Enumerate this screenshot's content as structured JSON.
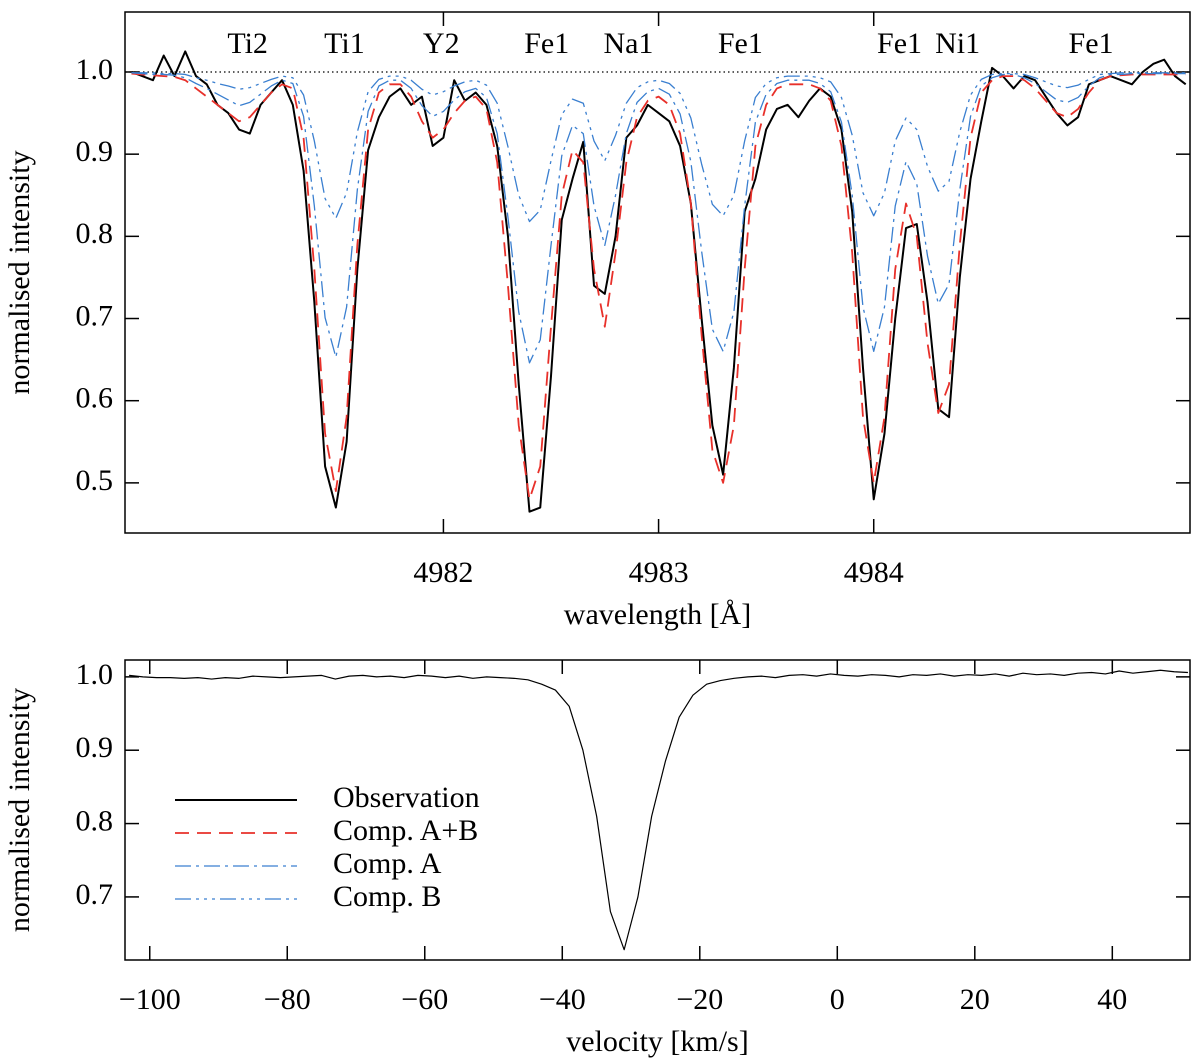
{
  "chart_data": [
    {
      "type": "line",
      "ylabel": "normalised intensity",
      "xlabel": "wavelength [Å]",
      "xlim": [
        4980.52,
        4985.47
      ],
      "ylim": [
        0.439,
        1.073
      ],
      "xticks": [
        4982,
        4983,
        4984
      ],
      "yticks": [
        0.5,
        0.6,
        0.7,
        0.8,
        0.9,
        {
          "value": 1,
          "label": "1.0"
        }
      ],
      "hline": 1,
      "annotations": [
        {
          "text": "Ti2",
          "x": 4981.09
        },
        {
          "text": "Ti1",
          "x": 4981.54
        },
        {
          "text": "Y2",
          "x": 4981.99
        },
        {
          "text": "Fe1",
          "x": 4982.48
        },
        {
          "text": "Na1",
          "x": 4982.86
        },
        {
          "text": "Fe1",
          "x": 4983.38
        },
        {
          "text": "Fe1",
          "x": 4984.12
        },
        {
          "text": "Ni1",
          "x": 4984.39
        },
        {
          "text": "Fe1",
          "x": 4985.01
        }
      ],
      "x": [
        4980.55,
        4980.6,
        4980.65,
        4980.7,
        4980.75,
        4980.8,
        4980.85,
        4980.9,
        4980.95,
        4981,
        4981.05,
        4981.1,
        4981.15,
        4981.2,
        4981.25,
        4981.3,
        4981.35,
        4981.4,
        4981.45,
        4981.5,
        4981.55,
        4981.6,
        4981.65,
        4981.7,
        4981.75,
        4981.8,
        4981.85,
        4981.9,
        4981.95,
        4982,
        4982.05,
        4982.1,
        4982.15,
        4982.2,
        4982.25,
        4982.3,
        4982.35,
        4982.4,
        4982.45,
        4982.5,
        4982.55,
        4982.6,
        4982.65,
        4982.7,
        4982.75,
        4982.8,
        4982.85,
        4982.9,
        4982.95,
        4983,
        4983.05,
        4983.1,
        4983.15,
        4983.2,
        4983.25,
        4983.3,
        4983.35,
        4983.4,
        4983.45,
        4983.5,
        4983.55,
        4983.6,
        4983.65,
        4983.7,
        4983.75,
        4983.8,
        4983.85,
        4983.9,
        4983.95,
        4984,
        4984.05,
        4984.1,
        4984.15,
        4984.2,
        4984.25,
        4984.3,
        4984.35,
        4984.4,
        4984.45,
        4984.5,
        4984.55,
        4984.6,
        4984.65,
        4984.7,
        4984.75,
        4984.8,
        4984.85,
        4984.9,
        4984.95,
        4985,
        4985.05,
        4985.1,
        4985.15,
        4985.2,
        4985.25,
        4985.3,
        4985.35,
        4985.4,
        4985.45
      ],
      "series": [
        {
          "name": "Observation",
          "color": "#000000",
          "style": "solid",
          "values": [
            1.0,
            0.995,
            0.99,
            1.02,
            0.995,
            1.025,
            0.995,
            0.985,
            0.96,
            0.95,
            0.93,
            0.925,
            0.96,
            0.975,
            0.99,
            0.96,
            0.88,
            0.72,
            0.52,
            0.47,
            0.55,
            0.76,
            0.905,
            0.945,
            0.97,
            0.98,
            0.96,
            0.97,
            0.91,
            0.92,
            0.99,
            0.965,
            0.975,
            0.96,
            0.91,
            0.8,
            0.62,
            0.465,
            0.47,
            0.63,
            0.82,
            0.87,
            0.915,
            0.74,
            0.73,
            0.8,
            0.92,
            0.935,
            0.96,
            0.95,
            0.94,
            0.91,
            0.84,
            0.7,
            0.57,
            0.51,
            0.64,
            0.83,
            0.87,
            0.93,
            0.955,
            0.96,
            0.945,
            0.965,
            0.98,
            0.97,
            0.93,
            0.83,
            0.64,
            0.48,
            0.56,
            0.7,
            0.81,
            0.815,
            0.72,
            0.59,
            0.58,
            0.75,
            0.87,
            0.94,
            1.005,
            0.995,
            0.98,
            0.995,
            0.99,
            0.97,
            0.95,
            0.935,
            0.945,
            0.985,
            0.99,
            0.995,
            0.99,
            0.985,
            1.0,
            1.01,
            1.015,
            0.995,
            0.985
          ]
        },
        {
          "name": "Comp. A+B",
          "color": "#e8302a",
          "style": "dashed",
          "values": [
            0.998,
            0.997,
            0.996,
            0.995,
            0.994,
            0.99,
            0.98,
            0.97,
            0.96,
            0.95,
            0.94,
            0.945,
            0.96,
            0.975,
            0.985,
            0.98,
            0.92,
            0.76,
            0.56,
            0.49,
            0.58,
            0.79,
            0.93,
            0.975,
            0.985,
            0.985,
            0.97,
            0.94,
            0.92,
            0.93,
            0.95,
            0.965,
            0.97,
            0.955,
            0.89,
            0.74,
            0.57,
            0.48,
            0.52,
            0.69,
            0.85,
            0.905,
            0.89,
            0.76,
            0.69,
            0.78,
            0.89,
            0.945,
            0.965,
            0.97,
            0.96,
            0.925,
            0.84,
            0.68,
            0.54,
            0.5,
            0.57,
            0.76,
            0.91,
            0.96,
            0.98,
            0.985,
            0.985,
            0.985,
            0.98,
            0.965,
            0.91,
            0.78,
            0.58,
            0.5,
            0.58,
            0.76,
            0.84,
            0.8,
            0.67,
            0.585,
            0.62,
            0.79,
            0.92,
            0.975,
            0.99,
            0.995,
            0.995,
            0.99,
            0.98,
            0.965,
            0.95,
            0.945,
            0.955,
            0.975,
            0.99,
            0.995,
            0.996,
            0.997,
            0.997,
            0.997,
            0.997,
            0.997,
            0.997
          ]
        },
        {
          "name": "Comp. A",
          "color": "#3a7fd0",
          "style": "dashdot",
          "values": [
            0.999,
            0.998,
            0.997,
            0.997,
            0.996,
            0.993,
            0.986,
            0.98,
            0.973,
            0.966,
            0.959,
            0.963,
            0.973,
            0.983,
            0.99,
            0.986,
            0.946,
            0.837,
            0.701,
            0.653,
            0.714,
            0.857,
            0.952,
            0.983,
            0.99,
            0.99,
            0.98,
            0.959,
            0.946,
            0.952,
            0.966,
            0.976,
            0.98,
            0.969,
            0.925,
            0.823,
            0.708,
            0.646,
            0.674,
            0.789,
            0.898,
            0.935,
            0.925,
            0.837,
            0.789,
            0.85,
            0.925,
            0.963,
            0.976,
            0.98,
            0.973,
            0.949,
            0.891,
            0.782,
            0.687,
            0.66,
            0.708,
            0.837,
            0.939,
            0.973,
            0.986,
            0.99,
            0.99,
            0.99,
            0.986,
            0.976,
            0.939,
            0.85,
            0.714,
            0.66,
            0.714,
            0.837,
            0.891,
            0.864,
            0.776,
            0.718,
            0.742,
            0.857,
            0.946,
            0.983,
            0.993,
            0.997,
            0.997,
            0.993,
            0.986,
            0.976,
            0.966,
            0.963,
            0.969,
            0.983,
            0.993,
            0.997,
            0.997,
            0.998,
            0.998,
            0.998,
            0.998,
            0.998,
            0.998
          ]
        },
        {
          "name": "Comp. B",
          "color": "#3a7fd0",
          "style": "dashdotdotdot",
          "values": [
            0.999,
            0.999,
            0.999,
            0.998,
            0.998,
            0.997,
            0.993,
            0.99,
            0.986,
            0.983,
            0.979,
            0.981,
            0.986,
            0.991,
            0.995,
            0.993,
            0.972,
            0.916,
            0.846,
            0.822,
            0.853,
            0.927,
            0.976,
            0.991,
            0.995,
            0.995,
            0.99,
            0.979,
            0.972,
            0.976,
            0.983,
            0.988,
            0.99,
            0.984,
            0.962,
            0.909,
            0.85,
            0.818,
            0.832,
            0.892,
            0.948,
            0.967,
            0.962,
            0.916,
            0.892,
            0.923,
            0.962,
            0.981,
            0.988,
            0.99,
            0.986,
            0.974,
            0.944,
            0.888,
            0.839,
            0.825,
            0.85,
            0.916,
            0.969,
            0.986,
            0.993,
            0.995,
            0.995,
            0.995,
            0.993,
            0.988,
            0.969,
            0.923,
            0.853,
            0.825,
            0.853,
            0.916,
            0.944,
            0.93,
            0.885,
            0.855,
            0.867,
            0.927,
            0.972,
            0.991,
            0.997,
            0.998,
            0.998,
            0.997,
            0.993,
            0.988,
            0.983,
            0.981,
            0.984,
            0.991,
            0.997,
            0.998,
            0.999,
            0.999,
            0.999,
            0.999,
            0.999,
            0.999,
            0.999
          ]
        }
      ]
    },
    {
      "type": "line",
      "ylabel": "normalised intensity",
      "xlabel": "velocity [km/s]",
      "xlim": [
        -103.6,
        51.3
      ],
      "ylim": [
        0.614,
        1.023
      ],
      "xticks": [
        {
          "value": -100,
          "label": "−100"
        },
        {
          "value": -80,
          "label": "−80"
        },
        {
          "value": -60,
          "label": "−60"
        },
        {
          "value": -40,
          "label": "−40"
        },
        {
          "value": -20,
          "label": "−20"
        },
        0,
        20,
        40
      ],
      "yticks": [
        0.7,
        0.8,
        0.9,
        {
          "value": 1,
          "label": "1.0"
        }
      ],
      "legend": "lower left",
      "x": [
        -103,
        -101,
        -99,
        -97,
        -95,
        -93,
        -91,
        -89,
        -87,
        -85,
        -83,
        -81,
        -79,
        -77,
        -75,
        -73,
        -71,
        -69,
        -67,
        -65,
        -63,
        -61,
        -59,
        -57,
        -55,
        -53,
        -51,
        -49,
        -47,
        -45,
        -43,
        -41,
        -39,
        -37,
        -35,
        -33,
        -31,
        -29,
        -27,
        -25,
        -23,
        -21,
        -19,
        -17,
        -15,
        -13,
        -11,
        -9,
        -7,
        -5,
        -3,
        -1,
        1,
        3,
        5,
        7,
        9,
        11,
        13,
        15,
        17,
        19,
        21,
        23,
        25,
        27,
        29,
        31,
        33,
        35,
        37,
        39,
        41,
        43,
        45,
        47,
        49,
        51
      ],
      "series": [
        {
          "color": "#000000",
          "style": "solid",
          "values": [
            1.002,
            1.0,
            0.999,
            0.999,
            0.998,
            0.999,
            0.997,
            0.999,
            0.998,
            1.001,
            1.0,
            0.999,
            1.0,
            1.001,
            1.002,
            0.997,
            1.001,
            1.002,
            1.0,
            1.001,
            0.999,
            1.002,
            1.001,
            0.999,
            1.001,
            0.998,
            1.0,
            0.999,
            0.998,
            0.996,
            0.99,
            0.982,
            0.96,
            0.9,
            0.81,
            0.68,
            0.628,
            0.7,
            0.81,
            0.885,
            0.945,
            0.975,
            0.99,
            0.995,
            0.998,
            1.0,
            1.001,
            0.999,
            1.002,
            1.003,
            1.001,
            1.004,
            1.002,
            1.001,
            1.003,
            1.002,
            1.0,
            1.003,
            1.002,
            1.004,
            1.001,
            1.003,
            1.002,
            1.004,
            1.001,
            1.005,
            1.003,
            1.004,
            1.002,
            1.005,
            1.006,
            1.004,
            1.008,
            1.005,
            1.007,
            1.009,
            1.007,
            1.006
          ]
        }
      ]
    }
  ]
}
